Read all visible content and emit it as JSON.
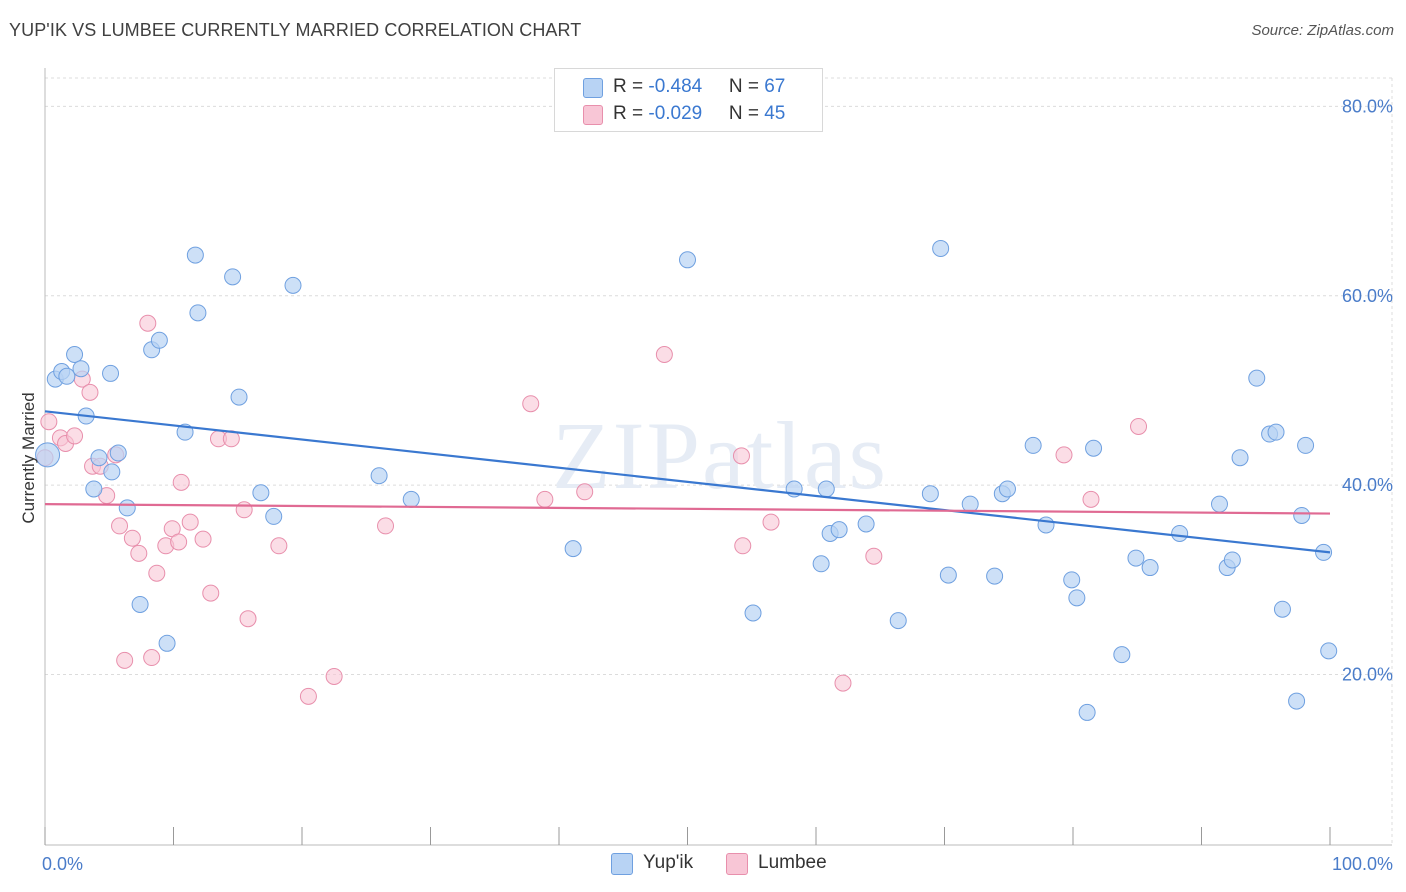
{
  "title": "YUP'IK VS LUMBEE CURRENTLY MARRIED CORRELATION CHART",
  "source": "Source: ZipAtlas.com",
  "watermark": "ZIPatlas",
  "colors": {
    "yupik_fill": "#b8d3f4",
    "yupik_stroke": "#6fa0e0",
    "yupik_line": "#3a78d0",
    "lumbee_fill": "#f8c6d6",
    "lumbee_stroke": "#e88fac",
    "lumbee_line": "#e06a93",
    "grid": "#dcdcdc",
    "tick_text": "#4a7cc9"
  },
  "legend": {
    "rows": [
      {
        "r_label": "R = ",
        "r_value": "-0.484",
        "n_label": "N = ",
        "n_value": "67"
      },
      {
        "r_label": "R = ",
        "r_value": "-0.029",
        "n_label": "N = ",
        "n_value": "45"
      }
    ]
  },
  "chart_data": {
    "type": "scatter",
    "title": "YUP'IK VS LUMBEE CURRENTLY MARRIED CORRELATION CHART",
    "xlabel": "",
    "ylabel": "Currently Married",
    "xlim": [
      0,
      100
    ],
    "ylim": [
      2,
      83
    ],
    "x_tick_labels": [
      "0.0%",
      "100.0%"
    ],
    "y_ticks": [
      20,
      40,
      60,
      80
    ],
    "y_tick_labels": [
      "20.0%",
      "40.0%",
      "60.0%",
      "80.0%"
    ],
    "series": [
      {
        "name": "Yup'ik",
        "trend": [
          [
            0,
            47.8
          ],
          [
            100,
            32.9
          ]
        ],
        "points": [
          [
            0.2,
            43.2
          ],
          [
            0.8,
            51.2
          ],
          [
            1.3,
            52.0
          ],
          [
            1.7,
            51.5
          ],
          [
            2.3,
            53.8
          ],
          [
            2.8,
            52.3
          ],
          [
            3.2,
            47.3
          ],
          [
            3.8,
            39.6
          ],
          [
            4.2,
            42.9
          ],
          [
            5.2,
            41.4
          ],
          [
            5.1,
            51.8
          ],
          [
            5.7,
            43.4
          ],
          [
            6.4,
            37.6
          ],
          [
            7.4,
            27.4
          ],
          [
            8.3,
            54.3
          ],
          [
            8.9,
            55.3
          ],
          [
            9.5,
            23.3
          ],
          [
            10.9,
            45.6
          ],
          [
            11.7,
            64.3
          ],
          [
            11.9,
            58.2
          ],
          [
            14.6,
            62.0
          ],
          [
            15.1,
            49.3
          ],
          [
            16.8,
            39.2
          ],
          [
            17.8,
            36.7
          ],
          [
            19.3,
            61.1
          ],
          [
            26.0,
            41.0
          ],
          [
            28.5,
            38.5
          ],
          [
            41.1,
            33.3
          ],
          [
            50.0,
            63.8
          ],
          [
            55.1,
            26.5
          ],
          [
            58.3,
            39.6
          ],
          [
            60.4,
            31.7
          ],
          [
            60.8,
            39.6
          ],
          [
            61.1,
            34.9
          ],
          [
            61.8,
            35.3
          ],
          [
            63.9,
            35.9
          ],
          [
            66.4,
            25.7
          ],
          [
            68.9,
            39.1
          ],
          [
            69.7,
            65.0
          ],
          [
            70.3,
            30.5
          ],
          [
            72.0,
            38.0
          ],
          [
            73.9,
            30.4
          ],
          [
            74.5,
            39.1
          ],
          [
            74.9,
            39.6
          ],
          [
            76.9,
            44.2
          ],
          [
            77.9,
            35.8
          ],
          [
            79.9,
            30.0
          ],
          [
            80.3,
            28.1
          ],
          [
            81.1,
            16.0
          ],
          [
            81.6,
            43.9
          ],
          [
            83.8,
            22.1
          ],
          [
            84.9,
            32.3
          ],
          [
            86.0,
            31.3
          ],
          [
            88.3,
            34.9
          ],
          [
            91.4,
            38.0
          ],
          [
            92.0,
            31.3
          ],
          [
            92.4,
            32.1
          ],
          [
            93.0,
            42.9
          ],
          [
            94.3,
            51.3
          ],
          [
            95.3,
            45.4
          ],
          [
            95.8,
            45.6
          ],
          [
            96.3,
            26.9
          ],
          [
            97.4,
            17.2
          ],
          [
            97.8,
            36.8
          ],
          [
            98.1,
            44.2
          ],
          [
            99.5,
            32.9
          ],
          [
            99.9,
            22.5
          ]
        ]
      },
      {
        "name": "Lumbee",
        "trend": [
          [
            0,
            38.0
          ],
          [
            100,
            37.0
          ]
        ],
        "points": [
          [
            0.0,
            42.9
          ],
          [
            0.3,
            46.7
          ],
          [
            1.2,
            45.0
          ],
          [
            1.6,
            44.4
          ],
          [
            2.3,
            45.2
          ],
          [
            2.9,
            51.2
          ],
          [
            3.5,
            49.8
          ],
          [
            3.7,
            42.0
          ],
          [
            4.3,
            42.0
          ],
          [
            4.8,
            38.9
          ],
          [
            5.5,
            43.2
          ],
          [
            5.8,
            35.7
          ],
          [
            6.2,
            21.5
          ],
          [
            6.8,
            34.4
          ],
          [
            7.3,
            32.8
          ],
          [
            8.0,
            57.1
          ],
          [
            8.3,
            21.8
          ],
          [
            8.7,
            30.7
          ],
          [
            9.4,
            33.6
          ],
          [
            9.9,
            35.4
          ],
          [
            10.4,
            34.0
          ],
          [
            10.6,
            40.3
          ],
          [
            11.3,
            36.1
          ],
          [
            12.3,
            34.3
          ],
          [
            12.9,
            28.6
          ],
          [
            13.5,
            44.9
          ],
          [
            14.5,
            44.9
          ],
          [
            15.5,
            37.4
          ],
          [
            15.8,
            25.9
          ],
          [
            18.2,
            33.6
          ],
          [
            20.5,
            17.7
          ],
          [
            22.5,
            19.8
          ],
          [
            26.5,
            35.7
          ],
          [
            37.8,
            48.6
          ],
          [
            38.9,
            38.5
          ],
          [
            42.0,
            39.3
          ],
          [
            48.2,
            53.8
          ],
          [
            54.2,
            43.1
          ],
          [
            54.3,
            33.6
          ],
          [
            56.5,
            36.1
          ],
          [
            62.1,
            19.1
          ],
          [
            64.5,
            32.5
          ],
          [
            79.3,
            43.2
          ],
          [
            81.4,
            38.5
          ],
          [
            85.1,
            46.2
          ]
        ]
      }
    ]
  },
  "bottom_legend": [
    {
      "label": "Yup'ik"
    },
    {
      "label": "Lumbee"
    }
  ]
}
